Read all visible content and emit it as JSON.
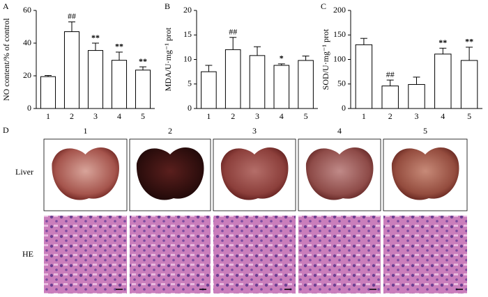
{
  "chart_data": [
    {
      "type": "bar",
      "panel_label": "A",
      "y_label": "NO content/% of control",
      "categories": [
        "1",
        "2",
        "3",
        "4",
        "5"
      ],
      "values": [
        19.5,
        47,
        35.5,
        29.5,
        23.5
      ],
      "errors": [
        0.7,
        6,
        4.5,
        5,
        2
      ],
      "annotations": [
        null,
        "##",
        "**",
        "**",
        "**"
      ],
      "color": "#ffffff",
      "ylim": [
        0,
        60
      ],
      "yticks": [
        0,
        20,
        40,
        60
      ]
    },
    {
      "type": "bar",
      "panel_label": "B",
      "y_label": "MDA/U·mg⁻¹ prot",
      "categories": [
        "1",
        "2",
        "3",
        "4",
        "5"
      ],
      "values": [
        7.5,
        12,
        10.8,
        8.8,
        9.8
      ],
      "errors": [
        1.3,
        2.5,
        1.8,
        0.3,
        0.9
      ],
      "annotations": [
        null,
        "##",
        null,
        "*",
        null
      ],
      "color": "#ffffff",
      "ylim": [
        0,
        20
      ],
      "yticks": [
        0,
        5,
        10,
        15,
        20
      ]
    },
    {
      "type": "bar",
      "panel_label": "C",
      "y_label": "SOD/U·mg⁻¹ prot",
      "categories": [
        "1",
        "2",
        "3",
        "4",
        "5"
      ],
      "values": [
        130,
        46,
        49,
        111,
        98
      ],
      "errors": [
        13,
        12,
        15,
        12,
        27
      ],
      "annotations": [
        null,
        "##",
        null,
        "**",
        "**"
      ],
      "color": "#ffffff",
      "ylim": [
        0,
        200
      ],
      "yticks": [
        0,
        50,
        100,
        150,
        200
      ]
    }
  ],
  "panel_d": {
    "label": "D",
    "columns": [
      "1",
      "2",
      "3",
      "4",
      "5"
    ],
    "rows": [
      "Liver",
      "HE"
    ]
  }
}
